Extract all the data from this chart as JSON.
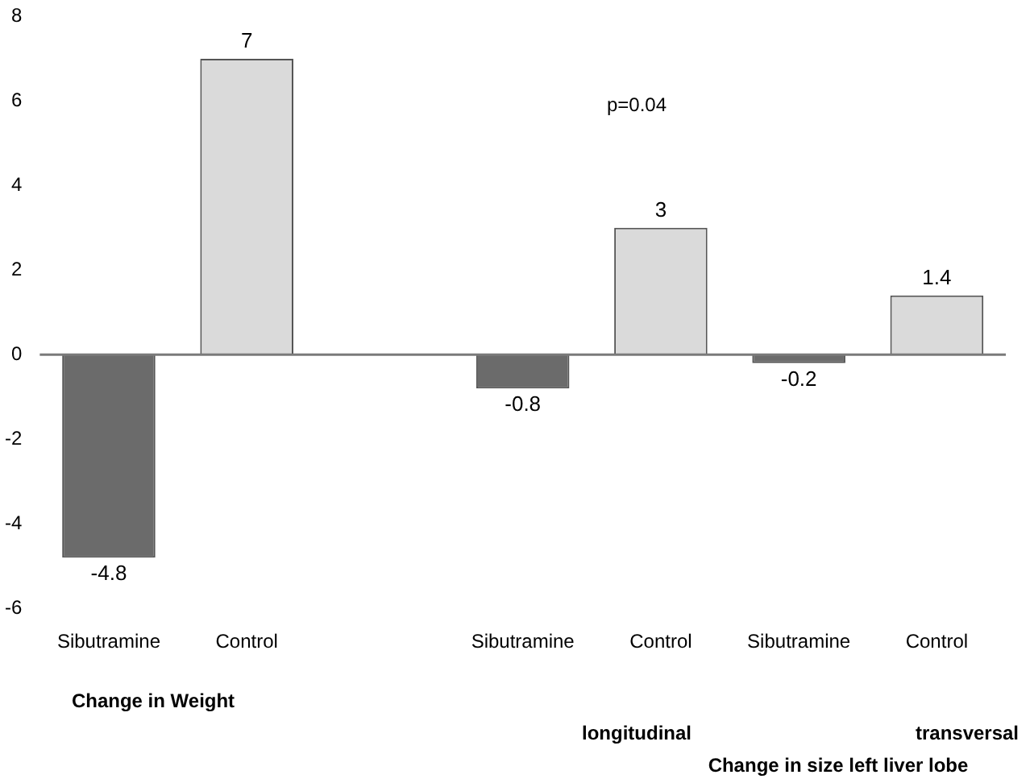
{
  "chart_data": {
    "type": "bar",
    "categories": [
      "Sibutramine",
      "Control",
      null,
      "Sibutramine",
      "Control",
      "Sibutramine",
      "Control"
    ],
    "values": [
      -4.8,
      7,
      null,
      -0.8,
      3,
      -0.2,
      1.4
    ],
    "colors": [
      "#6b6b6b",
      "#dadada",
      "#dadada",
      "#6b6b6b",
      "#dadada",
      "#6b6b6b",
      "#dadada"
    ],
    "ylim": [
      -6,
      8
    ],
    "yticks": [
      -6,
      -4,
      -2,
      0,
      2,
      4,
      6,
      8
    ],
    "grid": false,
    "legend": false,
    "data_labels": true,
    "ref_lines": [
      {
        "axis": "y",
        "value": 0,
        "color": "#7a7a7a"
      }
    ],
    "annotations": [
      "p=0.04",
      "Change in Weight",
      "longitudinal",
      "transversal",
      "Change in size left liver lobe"
    ]
  }
}
